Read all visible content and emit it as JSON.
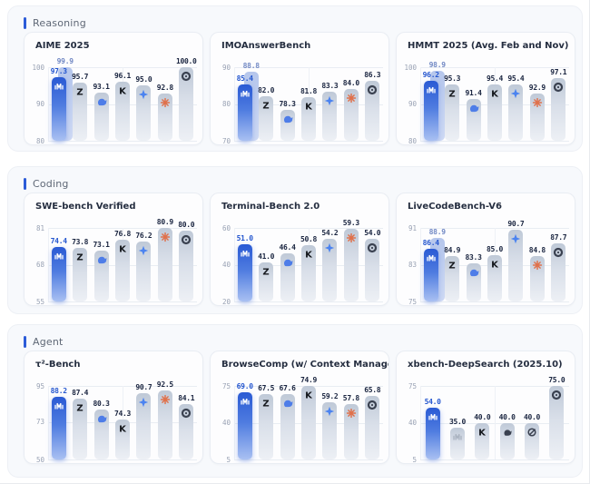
{
  "colors": {
    "accent": "#2c5cd8",
    "highlight_bar_top": "#2a5ad4",
    "highlight_bar_bottom": "#a9c0f2",
    "ghost_bar": "#b5c6ec",
    "gray_bar_top": "#bfc9d7",
    "gray_bar_bottom": "#edf0f5",
    "whale_blue": "#4e7de8",
    "star_blue": "#4b83f0",
    "burst_orange": "#e0704a",
    "dark_glyph": "#3a4150",
    "z_black": "#15181d",
    "minimax_on_blue": "#ffffff",
    "minimax_gray": "#a9b2c0"
  },
  "sections": [
    {
      "label": "Reasoning",
      "chart_indexes": [
        0,
        1,
        2
      ]
    },
    {
      "label": "Coding",
      "chart_indexes": [
        3,
        4,
        5
      ]
    },
    {
      "label": "Agent",
      "chart_indexes": [
        6,
        7,
        8
      ]
    }
  ],
  "chart_data": [
    {
      "type": "bar",
      "title": "AIME 2025",
      "yticks": [
        100,
        90,
        80
      ],
      "ylim": [
        80,
        100
      ],
      "grid": true,
      "legend": "none",
      "categories": [
        "minimax-logo",
        "z-logo",
        "whale-logo",
        "k-logo",
        "star4-logo",
        "burst-logo",
        "knot-logo"
      ],
      "bars": [
        {
          "icon": "minimax-logo",
          "value": 97.3,
          "highlight": true,
          "ghost_value": 99.9
        },
        {
          "icon": "z-logo",
          "value": 95.7
        },
        {
          "icon": "whale-logo",
          "value": 93.1
        },
        {
          "icon": "k-logo",
          "value": 96.1
        },
        {
          "icon": "star4-logo",
          "value": 95.0
        },
        {
          "icon": "burst-logo",
          "value": 92.8
        },
        {
          "icon": "knot-logo",
          "value": 100.0
        }
      ]
    },
    {
      "type": "bar",
      "title": "IMOAnswerBench",
      "yticks": [
        90,
        80,
        70
      ],
      "ylim": [
        70,
        90
      ],
      "grid": true,
      "legend": "none",
      "categories": [
        "minimax-logo",
        "z-logo",
        "whale-logo",
        "k-logo",
        "star4-logo",
        "burst-logo",
        "knot-logo"
      ],
      "bars": [
        {
          "icon": "minimax-logo",
          "value": 85.4,
          "highlight": true,
          "ghost_value": 88.8
        },
        {
          "icon": "z-logo",
          "value": 82.0
        },
        {
          "icon": "whale-logo",
          "value": 78.3
        },
        {
          "icon": "k-logo",
          "value": 81.8
        },
        {
          "icon": "star4-logo",
          "value": 83.3
        },
        {
          "icon": "burst-logo",
          "value": 84.0
        },
        {
          "icon": "knot-logo",
          "value": 86.3
        }
      ]
    },
    {
      "type": "bar",
      "title": "HMMT 2025 (Avg. Feb and Nov)",
      "yticks": [
        100,
        90,
        80
      ],
      "ylim": [
        80,
        100
      ],
      "grid": true,
      "legend": "none",
      "categories": [
        "minimax-logo",
        "z-logo",
        "whale-logo",
        "k-logo",
        "star4-logo",
        "burst-logo",
        "knot-logo"
      ],
      "bars": [
        {
          "icon": "minimax-logo",
          "value": 96.2,
          "highlight": true,
          "ghost_value": 98.9
        },
        {
          "icon": "z-logo",
          "value": 95.3
        },
        {
          "icon": "whale-logo",
          "value": 91.4
        },
        {
          "icon": "k-logo",
          "value": 95.4
        },
        {
          "icon": "star4-logo",
          "value": 95.4
        },
        {
          "icon": "burst-logo",
          "value": 92.9
        },
        {
          "icon": "knot-logo",
          "value": 97.1
        }
      ]
    },
    {
      "type": "bar",
      "title": "SWE-bench Verified",
      "yticks": [
        81,
        68,
        55
      ],
      "ylim": [
        55,
        81
      ],
      "grid": true,
      "legend": "none",
      "categories": [
        "minimax-logo",
        "z-logo",
        "whale-logo",
        "k-logo",
        "star4-logo",
        "burst-logo",
        "knot-logo"
      ],
      "bars": [
        {
          "icon": "minimax-logo",
          "value": 74.4,
          "highlight": true
        },
        {
          "icon": "z-logo",
          "value": 73.8
        },
        {
          "icon": "whale-logo",
          "value": 73.1
        },
        {
          "icon": "k-logo",
          "value": 76.8
        },
        {
          "icon": "star4-logo",
          "value": 76.2
        },
        {
          "icon": "burst-logo",
          "value": 80.9
        },
        {
          "icon": "knot-logo",
          "value": 80.0
        }
      ]
    },
    {
      "type": "bar",
      "title": "Terminal-Bench 2.0",
      "yticks": [
        60,
        40,
        20
      ],
      "ylim": [
        20,
        60
      ],
      "grid": true,
      "legend": "none",
      "categories": [
        "minimax-logo",
        "z-logo",
        "whale-logo",
        "k-logo",
        "star4-logo",
        "burst-logo",
        "knot-logo"
      ],
      "bars": [
        {
          "icon": "minimax-logo",
          "value": 51.0,
          "highlight": true
        },
        {
          "icon": "z-logo",
          "value": 41.0
        },
        {
          "icon": "whale-logo",
          "value": 46.4
        },
        {
          "icon": "k-logo",
          "value": 50.8
        },
        {
          "icon": "star4-logo",
          "value": 54.2
        },
        {
          "icon": "burst-logo",
          "value": 59.3
        },
        {
          "icon": "knot-logo",
          "value": 54.0
        }
      ]
    },
    {
      "type": "bar",
      "title": "LiveCodeBench-V6",
      "yticks": [
        91,
        83,
        75
      ],
      "ylim": [
        75,
        91
      ],
      "grid": true,
      "legend": "none",
      "categories": [
        "minimax-logo",
        "z-logo",
        "whale-logo",
        "k-logo",
        "star4-logo",
        "burst-logo",
        "knot-logo"
      ],
      "bars": [
        {
          "icon": "minimax-logo",
          "value": 86.4,
          "highlight": true,
          "ghost_value": 88.9
        },
        {
          "icon": "z-logo",
          "value": 84.9
        },
        {
          "icon": "whale-logo",
          "value": 83.3
        },
        {
          "icon": "k-logo",
          "value": 85.0
        },
        {
          "icon": "star4-logo",
          "value": 90.7
        },
        {
          "icon": "burst-logo",
          "value": 84.8
        },
        {
          "icon": "knot-logo",
          "value": 87.7
        }
      ]
    },
    {
      "type": "bar",
      "title": "τ²-Bench",
      "yticks": [
        95,
        73,
        50
      ],
      "ylim": [
        50,
        95
      ],
      "grid": true,
      "legend": "none",
      "categories": [
        "minimax-logo",
        "z-logo",
        "whale-logo",
        "k-logo",
        "star4-logo",
        "burst-logo",
        "knot-logo"
      ],
      "bars": [
        {
          "icon": "minimax-logo",
          "value": 88.2,
          "highlight": true
        },
        {
          "icon": "z-logo",
          "value": 87.4
        },
        {
          "icon": "whale-logo",
          "value": 80.3
        },
        {
          "icon": "k-logo",
          "value": 74.3
        },
        {
          "icon": "star4-logo",
          "value": 90.7
        },
        {
          "icon": "burst-logo",
          "value": 92.5
        },
        {
          "icon": "knot-logo",
          "value": 84.1
        }
      ]
    },
    {
      "type": "bar",
      "title": "BrowseComp (w/ Context Manager)",
      "yticks": [
        75,
        40,
        5
      ],
      "ylim": [
        5,
        75
      ],
      "grid": true,
      "legend": "none",
      "categories": [
        "minimax-logo",
        "z-logo",
        "whale-logo",
        "k-logo",
        "star4-logo",
        "burst-logo",
        "knot-logo"
      ],
      "bars": [
        {
          "icon": "minimax-logo",
          "value": 69.0,
          "highlight": true
        },
        {
          "icon": "z-logo",
          "value": 67.5
        },
        {
          "icon": "whale-logo",
          "value": 67.6
        },
        {
          "icon": "k-logo",
          "value": 74.9
        },
        {
          "icon": "star4-logo",
          "value": 59.2
        },
        {
          "icon": "burst-logo",
          "value": 57.8
        },
        {
          "icon": "knot-logo",
          "value": 65.8
        }
      ]
    },
    {
      "type": "bar",
      "title": "xbench-DeepSearch (2025.10)",
      "yticks": [
        75,
        40,
        5
      ],
      "ylim": [
        5,
        75
      ],
      "grid": true,
      "legend": "none",
      "categories": [
        "minimax-logo",
        "minimax-gray-logo",
        "k-logo",
        "whale-dark-logo",
        "circle-slash-logo",
        "knot-logo"
      ],
      "bars": [
        {
          "icon": "minimax-logo",
          "value": 54.0,
          "highlight": true
        },
        {
          "icon": "minimax-gray-logo",
          "value": 35.0
        },
        {
          "icon": "k-logo",
          "value": 40.0
        },
        {
          "icon": "whale-dark-logo",
          "value": 40.0
        },
        {
          "icon": "circle-slash-logo",
          "value": 40.0
        },
        {
          "icon": "knot-logo",
          "value": 75.0
        }
      ]
    }
  ]
}
